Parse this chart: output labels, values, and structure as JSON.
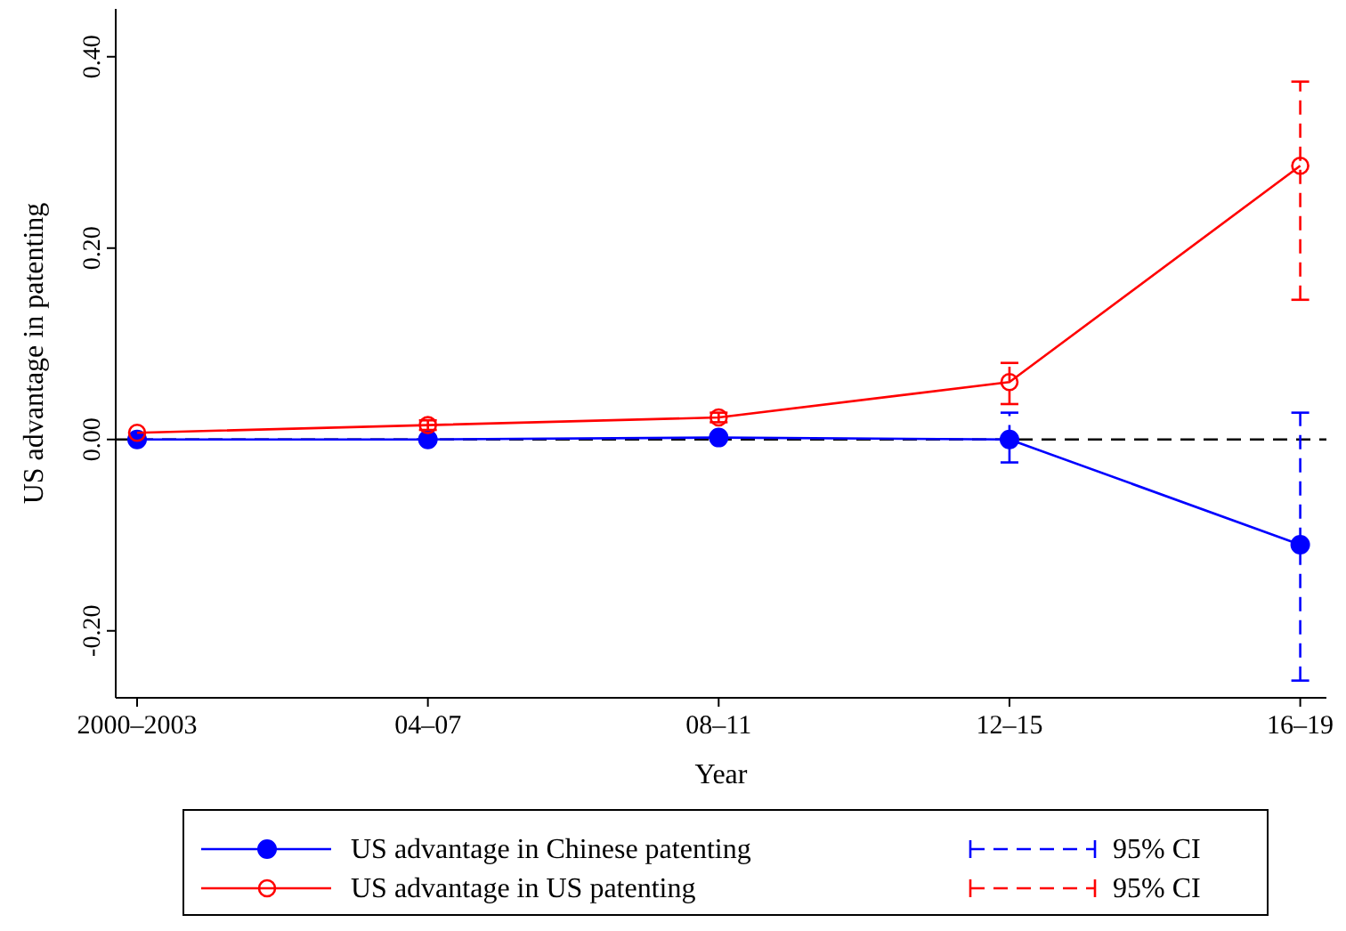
{
  "chart_data": {
    "type": "line",
    "xlabel": "Year",
    "ylabel": "US advantage in patenting",
    "categories": [
      "2000–2003",
      "04–07",
      "08–11",
      "12–15",
      "16–19"
    ],
    "ylim": [
      -0.27,
      0.45
    ],
    "yticks": [
      {
        "value": -0.2,
        "label": "-0.20"
      },
      {
        "value": 0,
        "label": "0.00"
      },
      {
        "value": 0.2,
        "label": "0.20"
      },
      {
        "value": 0.4,
        "label": "0.40"
      }
    ],
    "series": [
      {
        "name": "US advantage in Chinese patenting",
        "color": "#0000ff",
        "marker": "circle",
        "values": [
          0,
          0,
          0.002,
          0,
          -0.11
        ],
        "errors": [
          null,
          null,
          null,
          [
            -0.024,
            0.028
          ],
          [
            -0.252,
            0.028
          ]
        ]
      },
      {
        "name": "US advantage in US patenting",
        "color": "#ff0000",
        "marker": "circle_open",
        "values": [
          0.007,
          0.015,
          0.023,
          0.06,
          0.286
        ],
        "errors": [
          null,
          [
            0.01,
            0.02
          ],
          [
            0.018,
            0.028
          ],
          [
            0.037,
            0.08
          ],
          [
            0.146,
            0.374
          ]
        ]
      }
    ],
    "ref_lines": [
      {
        "axis": "y",
        "value": 0,
        "color": "#000000",
        "line_style": "dashed"
      }
    ],
    "annotations": [
      "95% CI",
      "95% CI"
    ],
    "legend": "bottom",
    "grid": false,
    "line_style": "solid"
  }
}
